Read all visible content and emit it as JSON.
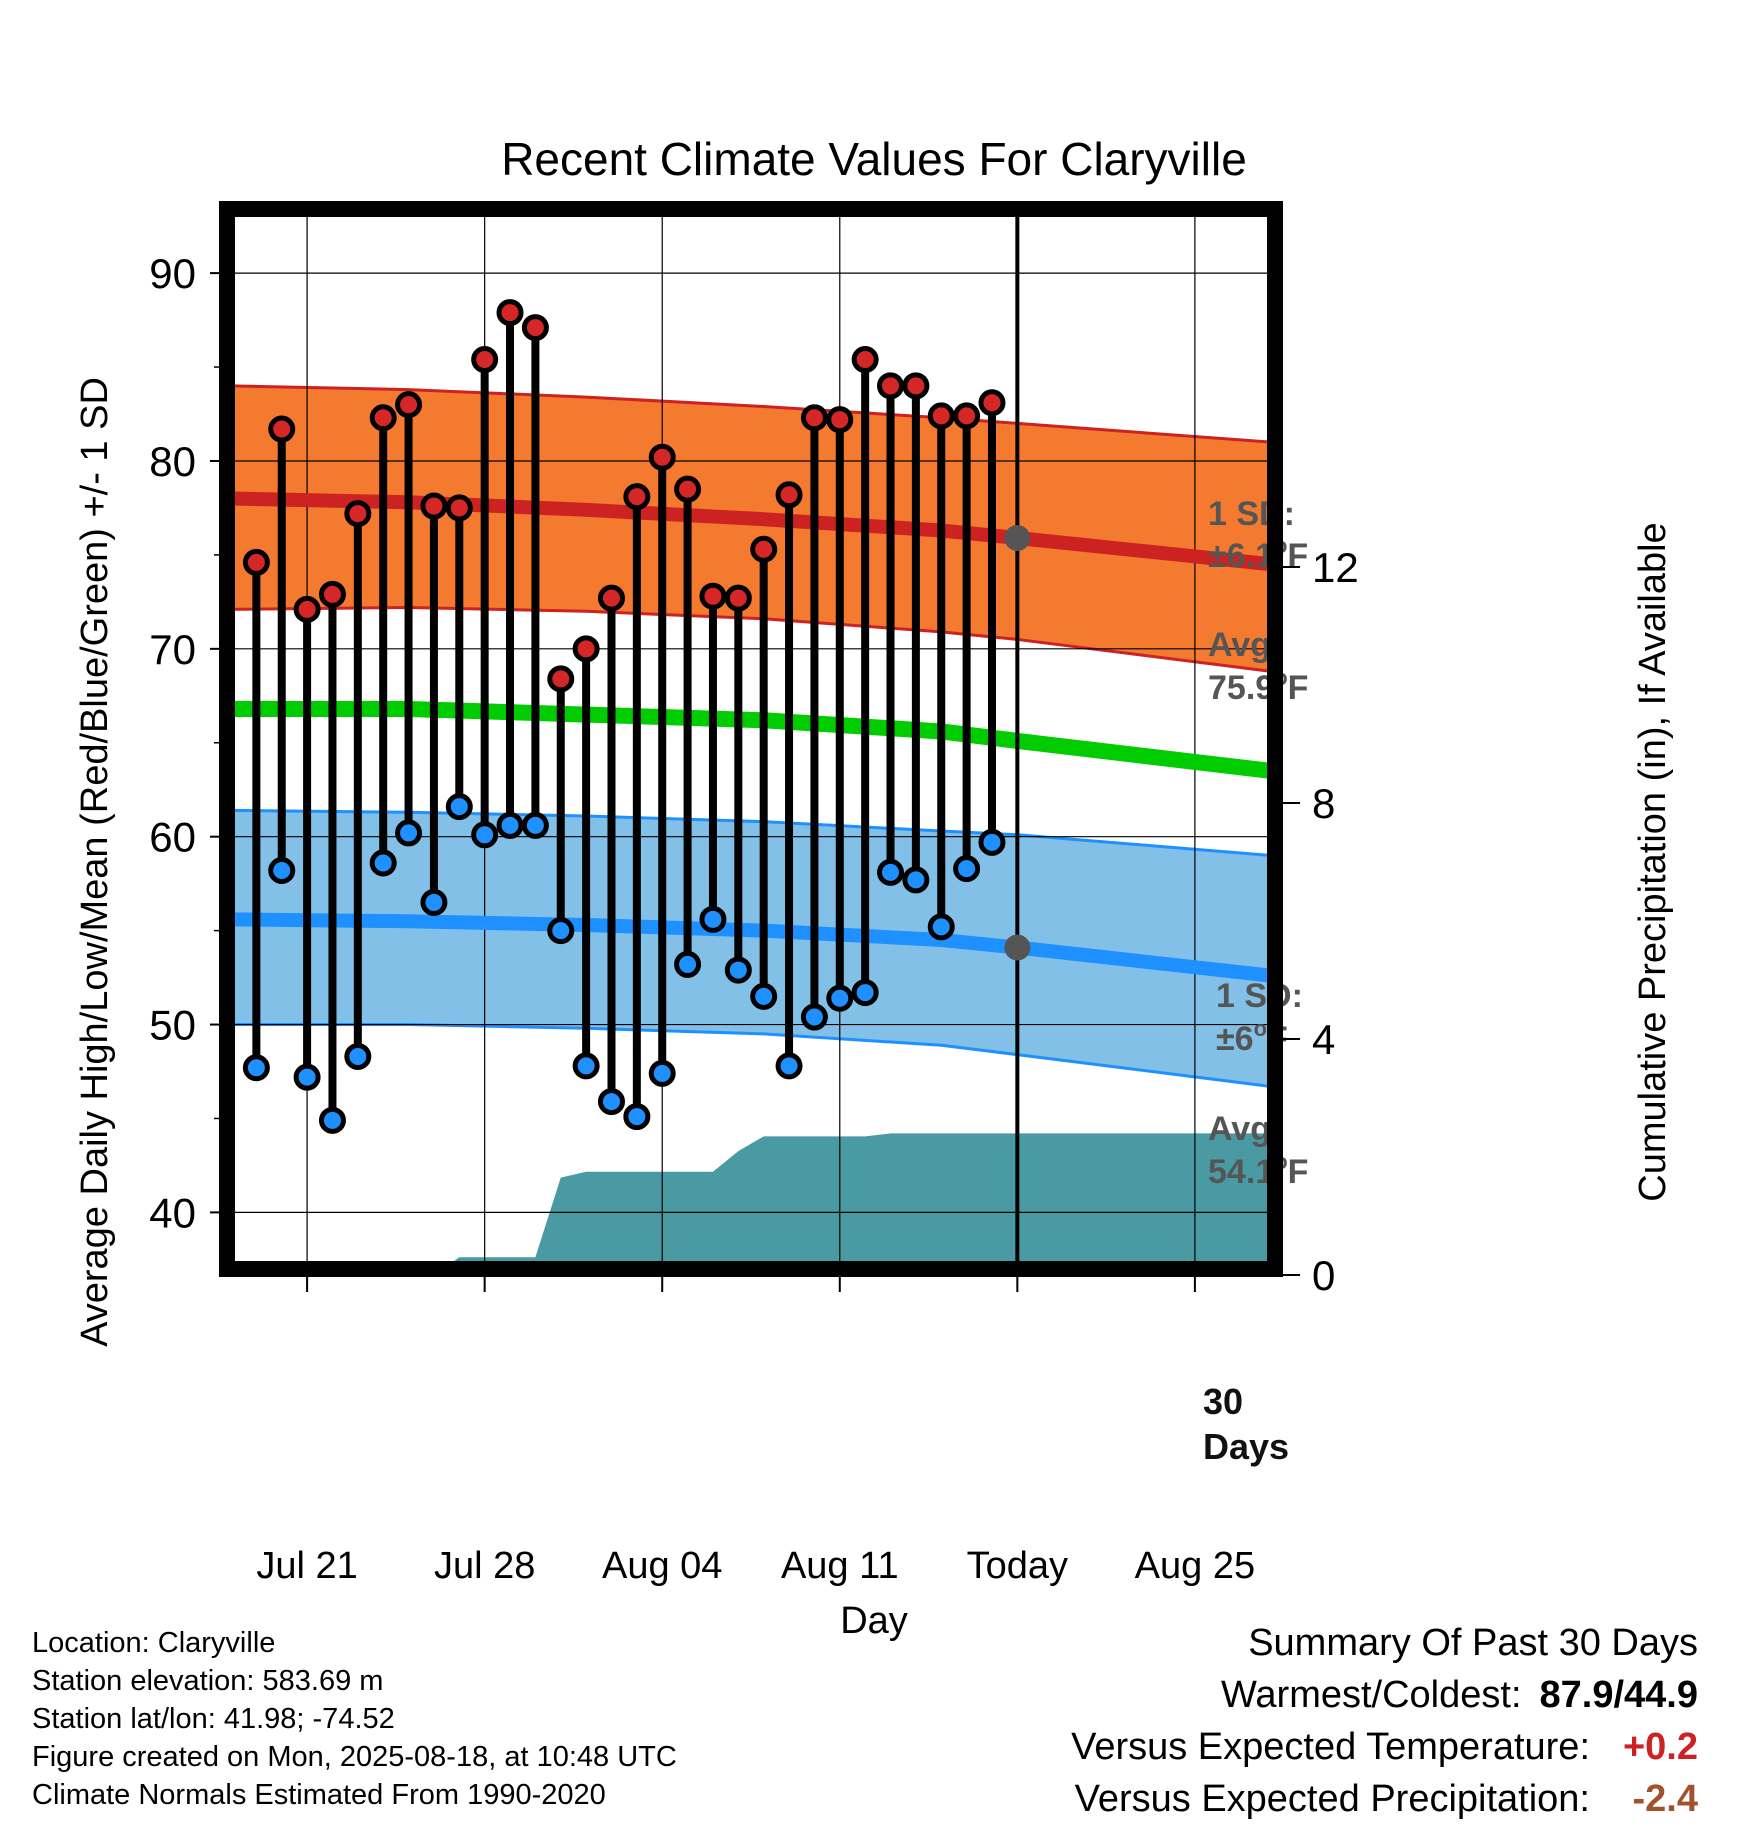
{
  "chart_data": {
    "type": "line",
    "title": "Recent Climate Values For Claryville",
    "xlabel": "Day",
    "ylabel": "Average Daily High/Low/Mean (Red/Blue/Green) +/- 1 SD",
    "y2label": "Cumulative Precipitation (in), If Available",
    "ylim": [
      37.2,
      93.2
    ],
    "y_ticks": [
      40,
      50,
      60,
      70,
      80,
      90
    ],
    "y2lim": [
      0,
      18
    ],
    "y2_ticks": [
      0,
      4,
      8,
      12
    ],
    "x_day_range": [
      -31,
      10
    ],
    "x_ticks": [
      {
        "day": -28,
        "label": "Jul 21"
      },
      {
        "day": -21,
        "label": "Jul 28"
      },
      {
        "day": -14,
        "label": "Aug 04"
      },
      {
        "day": -7,
        "label": "Aug 11"
      },
      {
        "day": 0,
        "label": "Today"
      },
      {
        "day": 7,
        "label": "Aug 25"
      }
    ],
    "today_day": 0,
    "grid": true,
    "daily_observations": {
      "days": [
        -30,
        -29,
        -28,
        -27,
        -26,
        -25,
        -24,
        -23,
        -22,
        -21,
        -20,
        -19,
        -18,
        -17,
        -16,
        -15,
        -14,
        -13,
        -12,
        -11,
        -10,
        -9,
        -8,
        -7,
        -6,
        -5,
        -4,
        -3,
        -2,
        -1
      ],
      "high": [
        74.6,
        81.7,
        72.1,
        72.9,
        77.2,
        82.3,
        83.0,
        77.6,
        77.5,
        85.4,
        87.9,
        87.1,
        68.4,
        70.0,
        72.7,
        78.1,
        80.2,
        78.5,
        72.8,
        72.7,
        75.3,
        78.2,
        82.3,
        82.2,
        85.4,
        84.0,
        84.0,
        82.4,
        82.4,
        83.1
      ],
      "low": [
        47.7,
        58.2,
        47.2,
        44.9,
        48.3,
        58.6,
        60.2,
        56.5,
        61.6,
        60.1,
        60.6,
        60.6,
        55.0,
        47.8,
        45.9,
        45.1,
        47.4,
        53.2,
        55.6,
        52.9,
        51.5,
        47.8,
        50.4,
        51.4,
        51.7,
        58.1,
        57.7,
        55.2,
        58.3,
        59.7
      ]
    },
    "series": [
      {
        "name": "High",
        "days": [
          -31,
          -24,
          -17,
          -10,
          -3,
          0,
          10
        ],
        "mean": [
          78.0,
          77.8,
          77.4,
          76.9,
          76.3,
          75.9,
          74.5
        ],
        "sd_upper": [
          84.0,
          83.8,
          83.4,
          82.9,
          82.3,
          82.0,
          81.0
        ],
        "sd_lower": [
          72.1,
          72.2,
          72.0,
          71.6,
          70.9,
          70.5,
          68.8
        ],
        "color": "#cc2222",
        "band_color": "#f47a30"
      },
      {
        "name": "Mean",
        "days": [
          -31,
          -24,
          -17,
          -10,
          -3,
          0,
          10
        ],
        "mean": [
          66.8,
          66.8,
          66.5,
          66.2,
          65.6,
          65.1,
          63.5
        ],
        "color": "#00cc00"
      },
      {
        "name": "Low",
        "days": [
          -31,
          -24,
          -17,
          -10,
          -3,
          0,
          10
        ],
        "mean": [
          55.6,
          55.5,
          55.3,
          55.0,
          54.5,
          54.1,
          52.6
        ],
        "sd_upper": [
          61.4,
          61.3,
          61.1,
          60.8,
          60.3,
          60.1,
          59.0
        ],
        "sd_lower": [
          50.0,
          50.0,
          49.8,
          49.5,
          48.9,
          48.4,
          46.7
        ],
        "color": "#1e90ff",
        "band_color": "#82c0e8"
      },
      {
        "name": "Cumulative Precipitation",
        "days": [
          -31,
          -23,
          -22,
          -21,
          -19,
          -18,
          -17,
          -16,
          -14,
          -12,
          -11,
          -10,
          -7,
          -6,
          -5,
          0,
          10
        ],
        "values": [
          0,
          0,
          0.3,
          0.3,
          0.3,
          1.65,
          1.75,
          1.75,
          1.75,
          1.75,
          2.1,
          2.35,
          2.35,
          2.35,
          2.4,
          2.4,
          2.4
        ],
        "color": "#4a9aa4"
      }
    ],
    "annotations": {
      "high_sd_label": "1 SD:",
      "high_sd_value": "±6.1",
      "high_avg_label": "Avg:",
      "high_avg_value": "75.9",
      "low_sd_label": "1 SD:",
      "low_sd_value": "±6",
      "low_avg_label": "Avg:",
      "low_avg_value": "54.1",
      "degree_unit": "o",
      "temp_unit": "F",
      "precip_days_value": "30",
      "precip_days_label": "Days"
    }
  },
  "info": {
    "location": "Location: Claryville",
    "elevation": "Station elevation: 583.69 m",
    "latlon": "Station lat/lon: 41.98; -74.52",
    "created": "Figure created on Mon, 2025-08-18, at 10:48 UTC",
    "normals": "Climate Normals Estimated From 1990-2020"
  },
  "summary": {
    "title": "Summary Of Past 30 Days",
    "warmest_label": "Warmest/Coldest:",
    "warmest_value": "87.9/44.9",
    "temp_label": "Versus Expected Temperature:",
    "temp_value": "+0.2",
    "temp_color": "#cc2222",
    "precip_label": "Versus Expected Precipitation:",
    "precip_value": "-2.4",
    "precip_color": "#a0522d"
  }
}
